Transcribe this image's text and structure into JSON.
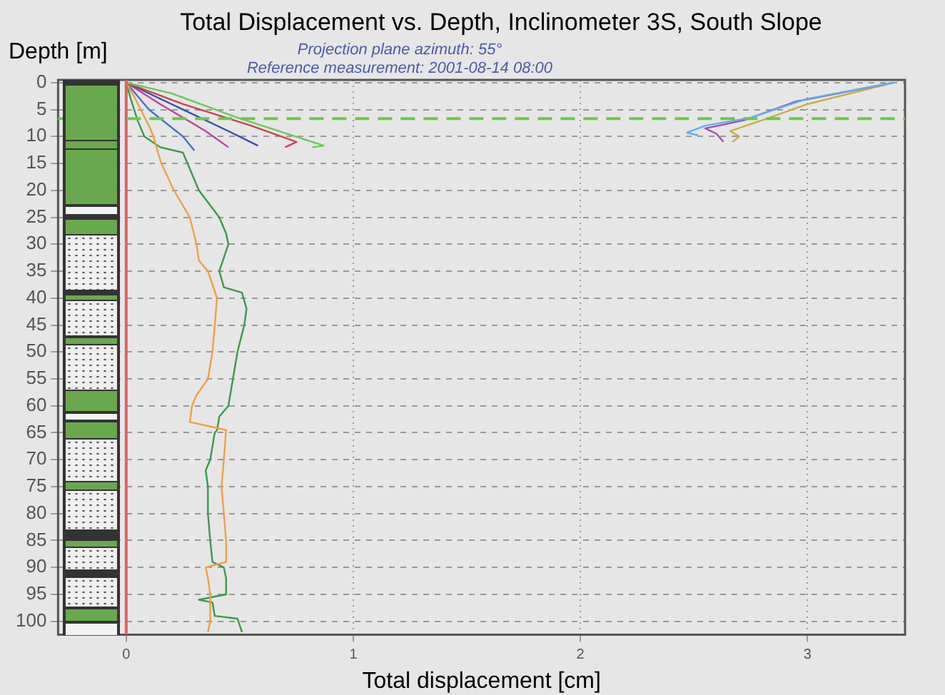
{
  "chart_data": {
    "type": "line",
    "title": "Total Displacement vs. Depth, Inclinometer 3S, South Slope",
    "xlabel": "Total displacement [cm]",
    "ylabel": "Depth [m]",
    "annotations": [
      "Projection plane azimuth: 55°",
      "Reference measurement: 2001-08-14  08:00"
    ],
    "xlim": [
      -0.3,
      3.43
    ],
    "xticks": [
      0,
      1,
      2,
      3
    ],
    "ylim": [
      102.5,
      -0.5
    ],
    "yticks": [
      0,
      5,
      10,
      15,
      20,
      25,
      30,
      35,
      40,
      45,
      50,
      55,
      60,
      65,
      70,
      75,
      80,
      85,
      90,
      95,
      100
    ],
    "grid": true,
    "legend": false,
    "marker": "none",
    "line_style": "solid",
    "ref_lines": [
      {
        "axis": "x",
        "value": 0,
        "label": null,
        "color": "#e06060",
        "line_style": "solid"
      },
      {
        "axis": "y",
        "value": 6.7,
        "label": null,
        "color": "#66cc44",
        "line_style": "dashed"
      }
    ],
    "series": [
      {
        "color": "#f0a040",
        "x": [
          0,
          0.04,
          0.1,
          0.12,
          0.14,
          0.155,
          0.21,
          0.28,
          0.31,
          0.32,
          0.36,
          0.4,
          0.39,
          0.38,
          0.36,
          0.31,
          0.29,
          0.28,
          0.44,
          0.43,
          0.42,
          0.43,
          0.44,
          0.44,
          0.35,
          0.36,
          0.37,
          0.37,
          0.36
        ],
        "values": [
          0,
          3,
          8,
          10,
          13,
          15,
          20,
          25,
          30,
          33,
          35,
          40,
          45,
          50,
          55,
          58,
          60,
          63,
          64.5,
          70,
          75,
          80,
          85,
          89,
          90,
          92,
          95,
          100,
          102
        ]
      },
      {
        "color": "#3a9a4a",
        "x": [
          0,
          0.02,
          0.05,
          0.08,
          0.15,
          0.25,
          0.27,
          0.32,
          0.41,
          0.44,
          0.45,
          0.41,
          0.43,
          0.51,
          0.53,
          0.52,
          0.49,
          0.47,
          0.45,
          0.41,
          0.4,
          0.39,
          0.37,
          0.35,
          0.36,
          0.36,
          0.37,
          0.38,
          0.43,
          0.44,
          0.44,
          0.32,
          0.38,
          0.39,
          0.49,
          0.51
        ],
        "values": [
          0,
          3,
          7,
          10,
          12,
          13,
          15,
          20,
          25,
          28,
          30,
          35,
          38,
          39,
          42,
          45,
          50,
          55,
          60,
          62,
          64.5,
          65,
          70,
          72,
          75,
          80,
          85,
          89,
          90,
          92,
          95,
          96,
          96.5,
          99,
          99.5,
          102
        ]
      },
      {
        "color": "#66cc55",
        "x": [
          0,
          0.2,
          0.49,
          0.87,
          0.82
        ],
        "values": [
          0,
          2,
          6.5,
          11.7,
          12
        ]
      },
      {
        "color": "#d04050",
        "x": [
          0,
          0.25,
          0.55,
          0.75,
          0.7
        ],
        "values": [
          0,
          4,
          8,
          11,
          12
        ]
      },
      {
        "color": "#3050b0",
        "x": [
          0,
          0.2,
          0.45,
          0.58
        ],
        "values": [
          0,
          4,
          9,
          11.7
        ]
      },
      {
        "color": "#c040a0",
        "x": [
          0,
          0.15,
          0.35,
          0.45
        ],
        "values": [
          0,
          4,
          9,
          12
        ]
      },
      {
        "color": "#4070d0",
        "x": [
          0,
          0.1,
          0.25,
          0.3
        ],
        "values": [
          0,
          5,
          10,
          12.6
        ]
      },
      {
        "color": "#60b0f0",
        "x": [
          3.38,
          3,
          2.75,
          2.55,
          2.47,
          2.52
        ],
        "values": [
          0,
          3,
          6.5,
          8,
          9.3,
          9.8
        ]
      },
      {
        "color": "#a050b0",
        "x": [
          3.38,
          2.95,
          2.72,
          2.55,
          2.6,
          2.63
        ],
        "values": [
          0,
          3.5,
          7,
          8.5,
          9.5,
          11
        ]
      },
      {
        "color": "#c8b040",
        "x": [
          3.38,
          3,
          2.8,
          2.66,
          2.7,
          2.67
        ],
        "values": [
          0,
          4,
          7,
          9,
          10,
          11
        ]
      }
    ]
  }
}
